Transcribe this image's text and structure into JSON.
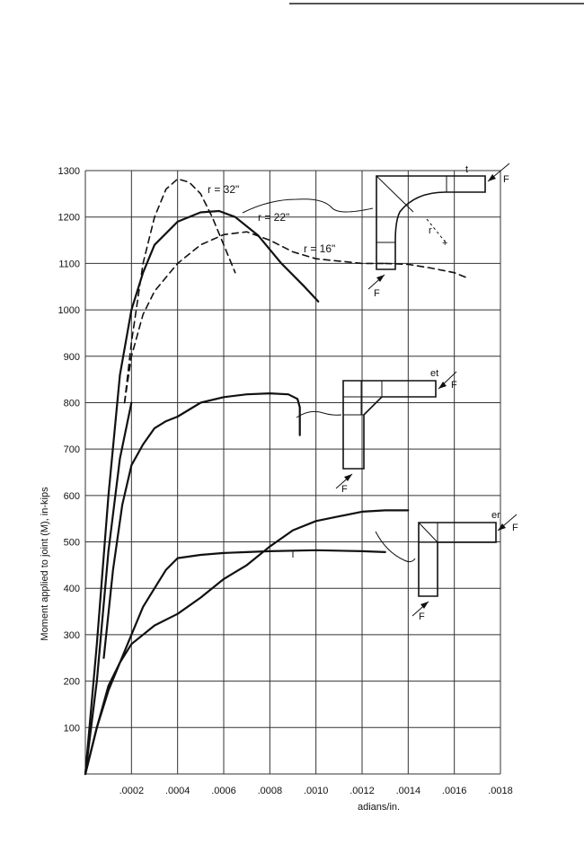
{
  "page": {
    "top_rule": true
  },
  "chart_data": {
    "type": "line",
    "title": "",
    "xlabel": "adians/in.",
    "ylabel": "Moment applied to joint (M), in-kips",
    "xlim": [
      0,
      0.0018
    ],
    "ylim": [
      0,
      1300
    ],
    "grid": true,
    "x_ticks": [
      ".0002",
      ".0004",
      ".0006",
      ".0008",
      ".0010",
      ".0012",
      ".0014",
      ".0016",
      ".0018"
    ],
    "y_ticks": [
      "100",
      "200",
      "300",
      "400",
      "500",
      "600",
      "700",
      "800",
      "900",
      "1000",
      "1100",
      "1200",
      "1300"
    ],
    "annotations": [
      "r = 32\"",
      "r = 22\"",
      "r = 16\""
    ],
    "series": [
      {
        "style": "dashed",
        "label": "r = 32\"",
        "points": [
          [
            0.00017,
            800
          ],
          [
            0.0002,
            930
          ],
          [
            0.00025,
            1100
          ],
          [
            0.0003,
            1200
          ],
          [
            0.00035,
            1260
          ],
          [
            0.0004,
            1282
          ],
          [
            0.00045,
            1275
          ],
          [
            0.0005,
            1250
          ],
          [
            0.00055,
            1200
          ],
          [
            0.0006,
            1140
          ],
          [
            0.00065,
            1080
          ]
        ]
      },
      {
        "style": "solid",
        "label": "r = 22\"",
        "points": [
          [
            0,
            0
          ],
          [
            5e-05,
            280
          ],
          [
            0.0001,
            600
          ],
          [
            0.00015,
            860
          ],
          [
            0.0002,
            1000
          ],
          [
            0.00025,
            1080
          ],
          [
            0.0003,
            1140
          ],
          [
            0.0004,
            1190
          ],
          [
            0.0005,
            1210
          ],
          [
            0.00058,
            1213
          ],
          [
            0.00065,
            1200
          ],
          [
            0.00075,
            1160
          ],
          [
            0.00085,
            1100
          ],
          [
            0.00095,
            1050
          ],
          [
            0.00101,
            1018
          ]
        ]
      },
      {
        "style": "dashed",
        "label": "r = 16\"",
        "points": [
          [
            0.00017,
            800
          ],
          [
            0.0002,
            900
          ],
          [
            0.00025,
            990
          ],
          [
            0.0003,
            1040
          ],
          [
            0.00035,
            1070
          ],
          [
            0.0004,
            1100
          ],
          [
            0.0005,
            1140
          ],
          [
            0.0006,
            1162
          ],
          [
            0.0007,
            1168
          ],
          [
            0.0008,
            1150
          ],
          [
            0.0009,
            1125
          ],
          [
            0.001,
            1110
          ],
          [
            0.0011,
            1105
          ],
          [
            0.0012,
            1100
          ],
          [
            0.0013,
            1100
          ]
        ]
      },
      {
        "style": "dashed",
        "label": "",
        "points": [
          [
            0.0013,
            1100
          ],
          [
            0.0014,
            1098
          ],
          [
            0.0015,
            1090
          ],
          [
            0.0016,
            1080
          ],
          [
            0.00165,
            1070
          ]
        ]
      },
      {
        "style": "solid",
        "label": "",
        "points": [
          [
            8e-05,
            250
          ],
          [
            0.00012,
            440
          ],
          [
            0.00016,
            580
          ],
          [
            0.0002,
            665
          ],
          [
            0.00025,
            710
          ],
          [
            0.0003,
            745
          ],
          [
            0.00035,
            760
          ],
          [
            0.0004,
            770
          ],
          [
            0.0005,
            800
          ],
          [
            0.0006,
            812
          ],
          [
            0.0007,
            818
          ],
          [
            0.0008,
            820
          ],
          [
            0.00088,
            818
          ],
          [
            0.00092,
            808
          ],
          [
            0.00093,
            790
          ],
          [
            0.00093,
            730
          ]
        ]
      },
      {
        "style": "solid",
        "label": "",
        "points": [
          [
            0,
            0
          ],
          [
            5e-05,
            200
          ],
          [
            0.0001,
            480
          ],
          [
            0.00015,
            680
          ],
          [
            0.0002,
            800
          ]
        ]
      },
      {
        "style": "solid",
        "label": "",
        "points": [
          [
            0,
            0
          ],
          [
            5e-05,
            100
          ],
          [
            0.0001,
            180
          ],
          [
            0.00015,
            240
          ],
          [
            0.0002,
            300
          ],
          [
            0.00025,
            360
          ],
          [
            0.0003,
            400
          ],
          [
            0.00035,
            440
          ],
          [
            0.0004,
            465
          ],
          [
            0.0005,
            472
          ],
          [
            0.0006,
            476
          ],
          [
            0.0007,
            478
          ],
          [
            0.0008,
            480
          ],
          [
            0.001,
            482
          ],
          [
            0.0012,
            480
          ],
          [
            0.0013,
            478
          ]
        ]
      },
      {
        "style": "solid",
        "label": "",
        "points": [
          [
            0,
            0
          ],
          [
            5e-05,
            100
          ],
          [
            0.0001,
            190
          ],
          [
            0.00015,
            240
          ],
          [
            0.0002,
            280
          ],
          [
            0.0003,
            320
          ],
          [
            0.0004,
            345
          ],
          [
            0.0005,
            380
          ],
          [
            0.0006,
            420
          ],
          [
            0.0007,
            450
          ],
          [
            0.0008,
            490
          ],
          [
            0.0009,
            525
          ],
          [
            0.001,
            545
          ],
          [
            0.0011,
            555
          ],
          [
            0.0012,
            565
          ],
          [
            0.0013,
            568
          ],
          [
            0.0014,
            568
          ]
        ]
      }
    ]
  },
  "sketches": {
    "a": {
      "force_label": "F",
      "force_label2": "F",
      "r_label": "r",
      "t_label": "t"
    },
    "b": {
      "force_label": "F",
      "force_label2": "F",
      "t_label": "et"
    },
    "c": {
      "force_label": "F",
      "force_label2": "F",
      "t_label": "er"
    }
  }
}
